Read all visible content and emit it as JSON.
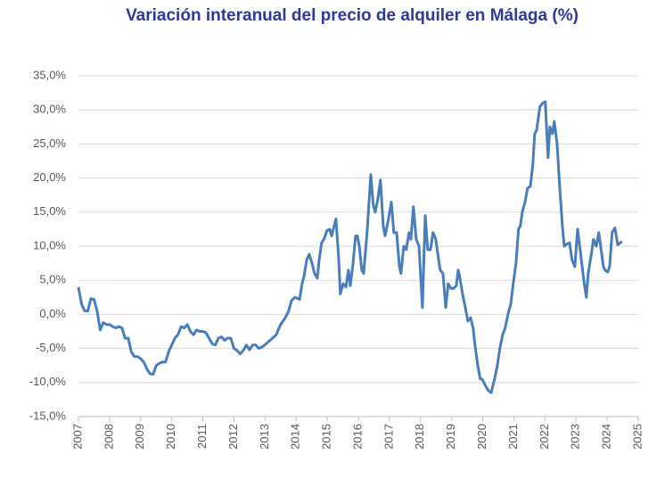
{
  "chart_data": {
    "type": "line",
    "title": "Variación interanual del precio de alquiler en Málaga (%)",
    "color": "#4a7ebb",
    "grid": true,
    "x": [
      2007.0,
      2007.1,
      2007.2,
      2007.3,
      2007.4,
      2007.5,
      2007.6,
      2007.7,
      2007.8,
      2007.9,
      2008.0,
      2008.1,
      2008.2,
      2008.3,
      2008.4,
      2008.5,
      2008.6,
      2008.7,
      2008.8,
      2008.9,
      2009.0,
      2009.1,
      2009.2,
      2009.3,
      2009.4,
      2009.5,
      2009.6,
      2009.7,
      2009.8,
      2009.9,
      2010.0,
      2010.1,
      2010.2,
      2010.3,
      2010.4,
      2010.5,
      2010.6,
      2010.7,
      2010.8,
      2010.9,
      2011.0,
      2011.1,
      2011.2,
      2011.3,
      2011.4,
      2011.5,
      2011.6,
      2011.7,
      2011.8,
      2011.9,
      2012.0,
      2012.1,
      2012.2,
      2012.3,
      2012.4,
      2012.5,
      2012.6,
      2012.7,
      2012.8,
      2012.9,
      2012.99,
      2013.36,
      2013.5,
      2013.65,
      2013.76,
      2013.85,
      2013.96,
      2014.11,
      2014.19,
      2014.25,
      2014.34,
      2014.42,
      2014.51,
      2014.59,
      2014.68,
      2014.74,
      2014.82,
      2014.91,
      2014.99,
      2015.08,
      2015.14,
      2015.28,
      2015.37,
      2015.42,
      2015.51,
      2015.6,
      2015.68,
      2015.74,
      2015.83,
      2015.91,
      2015.97,
      2016.03,
      2016.11,
      2016.17,
      2016.28,
      2016.4,
      2016.48,
      2016.54,
      2016.63,
      2016.71,
      2016.8,
      2016.86,
      2016.97,
      2017.06,
      2017.14,
      2017.23,
      2017.32,
      2017.37,
      2017.46,
      2017.54,
      2017.63,
      2017.69,
      2017.77,
      2017.86,
      2017.95,
      2018.06,
      2018.15,
      2018.23,
      2018.32,
      2018.4,
      2018.49,
      2018.55,
      2018.63,
      2018.72,
      2018.81,
      2018.89,
      2018.98,
      2019.06,
      2019.15,
      2019.21,
      2019.26,
      2019.35,
      2019.44,
      2019.52,
      2019.61,
      2019.69,
      2019.75,
      2019.84,
      2019.92,
      2019.98,
      2020.09,
      2020.18,
      2020.27,
      2020.38,
      2020.47,
      2020.55,
      2020.64,
      2020.72,
      2020.81,
      2020.9,
      2020.98,
      2021.07,
      2021.15,
      2021.21,
      2021.27,
      2021.36,
      2021.44,
      2021.53,
      2021.61,
      2021.67,
      2021.73,
      2021.84,
      2021.93,
      2022.01,
      2022.1,
      2022.16,
      2022.24,
      2022.3,
      2022.39,
      2022.47,
      2022.56,
      2022.62,
      2022.7,
      2022.79,
      2022.87,
      2022.96,
      2023.05,
      2023.13,
      2023.25,
      2023.33,
      2023.39,
      2023.48,
      2023.56,
      2023.65,
      2023.73,
      2023.82,
      2023.88,
      2023.93,
      2024.02,
      2024.08,
      2024.16,
      2024.25,
      2024.34,
      2024.48
    ],
    "values": [
      4,
      1.5,
      0.5,
      0.5,
      2.3,
      2.2,
      0.5,
      -2.3,
      -1.2,
      -1.5,
      -1.5,
      -1.8,
      -2,
      -1.8,
      -2,
      -3.5,
      -3.5,
      -5.5,
      -6.2,
      -6.2,
      -6.5,
      -7,
      -8,
      -8.7,
      -8.8,
      -7.5,
      -7.2,
      -7,
      -7,
      -5.5,
      -4.5,
      -3.5,
      -3,
      -1.8,
      -2,
      -1.5,
      -2.5,
      -3,
      -2.3,
      -2.5,
      -2.5,
      -2.7,
      -3.5,
      -4.3,
      -4.5,
      -3.5,
      -3.3,
      -3.8,
      -3.5,
      -3.5,
      -5,
      -5.3,
      -5.8,
      -5.3,
      -4.5,
      -5.2,
      -4.5,
      -4.5,
      -5,
      -4.8,
      -4.5,
      -3,
      -1.5,
      -0.5,
      0.5,
      2,
      2.5,
      2.2,
      4.5,
      5.5,
      8,
      8.8,
      7.5,
      6,
      5.3,
      8,
      10.5,
      11.2,
      12.3,
      12.5,
      11.5,
      14,
      8,
      3,
      4.5,
      4,
      6.5,
      4.2,
      7.5,
      11.5,
      11.5,
      10,
      6.5,
      6,
      12,
      20.5,
      16,
      15,
      17,
      19.7,
      13,
      11.5,
      14,
      16.5,
      12,
      12,
      7,
      6,
      10,
      9.5,
      12,
      11,
      15.8,
      11,
      10,
      1,
      14.5,
      9.5,
      9.5,
      12,
      11,
      9,
      6.5,
      6,
      1,
      4.5,
      3.8,
      3.8,
      4.2,
      6.5,
      5.5,
      3,
      1,
      -1,
      -0.5,
      -2,
      -4.5,
      -7.5,
      -9.5,
      -9.5,
      -10.5,
      -11.2,
      -11.5,
      -9.5,
      -7.5,
      -5,
      -3,
      -2,
      0,
      1.5,
      4.5,
      7.5,
      12.5,
      13,
      15,
      16.5,
      18.5,
      18.8,
      22,
      26.5,
      27,
      30.5,
      31,
      31.2,
      23,
      27.5,
      26.5,
      28.3,
      25,
      19,
      13,
      10,
      10.3,
      10.5,
      8,
      7,
      12.5,
      9.5,
      5,
      2.5,
      6,
      8.5,
      11,
      10,
      12,
      9,
      7,
      6.5,
      6.2,
      7,
      12,
      12.7,
      10.2,
      10.7
    ],
    "xlim": [
      2007,
      2025
    ],
    "xticks": [
      2007,
      2008,
      2009,
      2010,
      2011,
      2012,
      2013,
      2014,
      2015,
      2016,
      2017,
      2018,
      2019,
      2020,
      2021,
      2022,
      2023,
      2024,
      2025
    ],
    "ylim": [
      -15,
      35
    ],
    "yticks": [
      {
        "value": -15,
        "label": "-15,0%"
      },
      {
        "value": -10,
        "label": "-10,0%"
      },
      {
        "value": -5,
        "label": "-5,0%"
      },
      {
        "value": 0,
        "label": "0,0%"
      },
      {
        "value": 5,
        "label": "5,0%"
      },
      {
        "value": 10,
        "label": "10,0%"
      },
      {
        "value": 15,
        "label": "15,0%"
      },
      {
        "value": 20,
        "label": "20,0%"
      },
      {
        "value": 25,
        "label": "25,0%"
      },
      {
        "value": 30,
        "label": "30,0%"
      },
      {
        "value": 35,
        "label": "35,0%"
      }
    ]
  }
}
